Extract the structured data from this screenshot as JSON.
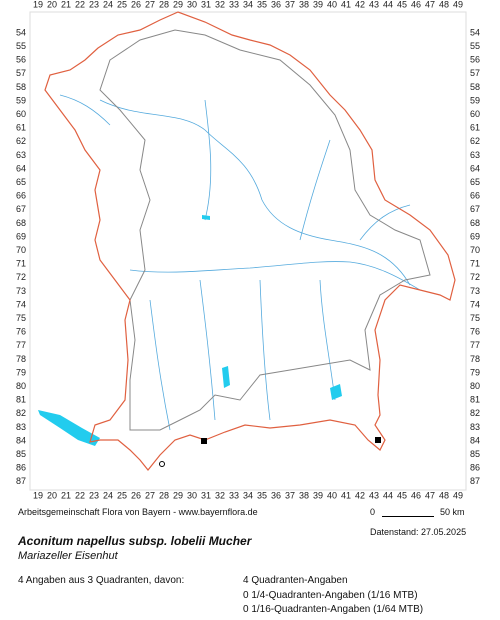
{
  "grid": {
    "columns": [
      19,
      20,
      21,
      22,
      23,
      24,
      25,
      26,
      27,
      28,
      29,
      30,
      31,
      32,
      33,
      34,
      35,
      36,
      37,
      38,
      39,
      40,
      41,
      42,
      43,
      44,
      45,
      46,
      47,
      48,
      49
    ],
    "rows": [
      54,
      55,
      56,
      57,
      58,
      59,
      60,
      61,
      62,
      63,
      64,
      65,
      66,
      67,
      68,
      69,
      70,
      71,
      72,
      73,
      74,
      75,
      76,
      77,
      78,
      79,
      80,
      81,
      82,
      83,
      84,
      85,
      86,
      87
    ]
  },
  "credit": "Arbeitsgemeinschaft Flora von Bayern - www.bayernflora.de",
  "scale": {
    "zero": "0",
    "label": "50 km"
  },
  "date": "Datenstand: 27.05.2025",
  "species": {
    "name": "Aconitum napellus subsp. lobelii Mucher",
    "common_name": "Mariazeller Eisenhut"
  },
  "summary": "4 Angaben aus 3 Quadranten, davon:",
  "counts": [
    "4 Quadranten-Angaben",
    "0 1/4-Quadranten-Angaben (1/16 MTB)",
    "0 1/16-Quadranten-Angaben (1/64 MTB)"
  ]
}
